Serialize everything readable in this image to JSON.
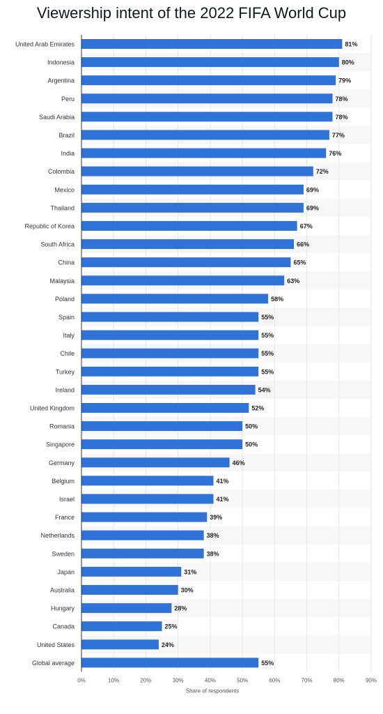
{
  "chart_data": {
    "type": "bar",
    "orientation": "horizontal",
    "title": "Viewership intent of the 2022 FIFA World Cup",
    "xlabel": "Share of respondents",
    "ylabel": "",
    "xlim": [
      0,
      90
    ],
    "x_ticks": [
      "0%",
      "10%",
      "20%",
      "30%",
      "40%",
      "50%",
      "60%",
      "70%",
      "80%",
      "90%"
    ],
    "value_suffix": "%",
    "bar_color": "#2f73d8",
    "grid": true,
    "categories": [
      "United Arab Emirates",
      "Indonesia",
      "Argentina",
      "Peru",
      "Saudi Arabia",
      "Brazil",
      "India",
      "Colombia",
      "Mexico",
      "Thailand",
      "Republic of Korea",
      "South Africa",
      "China",
      "Malaysia",
      "Poland",
      "Spain",
      "Italy",
      "Chile",
      "Turkey",
      "Ireland",
      "United Kingdom",
      "Romania",
      "Singapore",
      "Germany",
      "Belgium",
      "Israel",
      "France",
      "Netherlands",
      "Sweden",
      "Japan",
      "Australia",
      "Hungary",
      "Canada",
      "United States",
      "Global average"
    ],
    "values": [
      81,
      80,
      79,
      78,
      78,
      77,
      76,
      72,
      69,
      69,
      67,
      66,
      65,
      63,
      58,
      55,
      55,
      55,
      55,
      54,
      52,
      50,
      50,
      46,
      41,
      41,
      39,
      38,
      38,
      31,
      30,
      28,
      25,
      24,
      55
    ]
  }
}
